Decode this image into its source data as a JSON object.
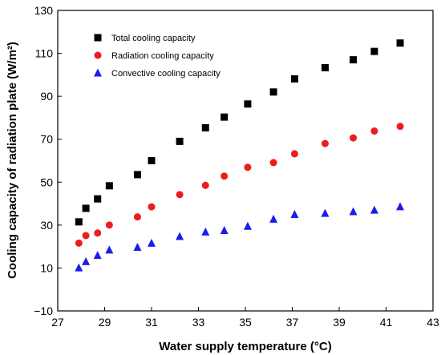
{
  "chart_data": {
    "type": "scatter",
    "title": "",
    "xlabel": "Water supply temperature (°C)",
    "ylabel": "Cooling capacity of radiation plate (W/m²)",
    "xlim": [
      27,
      43
    ],
    "ylim": [
      -10,
      130
    ],
    "xticks": [
      27,
      29,
      31,
      33,
      35,
      37,
      39,
      41,
      43
    ],
    "yticks": [
      -10,
      10,
      30,
      50,
      70,
      90,
      110,
      130
    ],
    "xtick_labels": [
      "27",
      "29",
      "31",
      "33",
      "35",
      "37",
      "39",
      "41",
      "43"
    ],
    "ytick_labels": [
      "−10",
      "10",
      "30",
      "50",
      "70",
      "90",
      "110",
      "130"
    ],
    "grid": false,
    "legend_position": "top-left",
    "series": [
      {
        "name": "Total cooling capacity",
        "marker": "square",
        "color": "#000000",
        "points": [
          [
            27.9,
            31.5
          ],
          [
            28.2,
            37.8
          ],
          [
            28.7,
            42.2
          ],
          [
            29.2,
            48.3
          ],
          [
            30.4,
            53.5
          ],
          [
            31.0,
            60.0
          ],
          [
            32.2,
            69.0
          ],
          [
            33.3,
            75.3
          ],
          [
            34.1,
            80.3
          ],
          [
            35.1,
            86.4
          ],
          [
            36.2,
            92.0
          ],
          [
            37.1,
            98.1
          ],
          [
            38.4,
            103.3
          ],
          [
            39.6,
            107.0
          ],
          [
            40.5,
            110.9
          ],
          [
            41.6,
            114.8
          ]
        ]
      },
      {
        "name": "Radiation cooling capacity",
        "marker": "circle",
        "color": "#ee1c1c",
        "points": [
          [
            27.9,
            21.6
          ],
          [
            28.2,
            25.1
          ],
          [
            28.7,
            26.3
          ],
          [
            29.2,
            30.0
          ],
          [
            30.4,
            33.8
          ],
          [
            31.0,
            38.5
          ],
          [
            32.2,
            44.2
          ],
          [
            33.3,
            48.5
          ],
          [
            34.1,
            52.8
          ],
          [
            35.1,
            56.9
          ],
          [
            36.2,
            59.1
          ],
          [
            37.1,
            63.2
          ],
          [
            38.4,
            68.0
          ],
          [
            39.6,
            70.6
          ],
          [
            40.5,
            73.8
          ],
          [
            41.6,
            76.0
          ]
        ]
      },
      {
        "name": "Convective cooling capacity",
        "marker": "triangle",
        "color": "#1c1cee",
        "points": [
          [
            27.9,
            10.1
          ],
          [
            28.2,
            13.0
          ],
          [
            28.7,
            15.9
          ],
          [
            29.2,
            18.4
          ],
          [
            30.4,
            19.7
          ],
          [
            31.0,
            21.6
          ],
          [
            32.2,
            24.7
          ],
          [
            33.3,
            26.8
          ],
          [
            34.1,
            27.5
          ],
          [
            35.1,
            29.5
          ],
          [
            36.2,
            32.8
          ],
          [
            37.1,
            35.0
          ],
          [
            38.4,
            35.5
          ],
          [
            39.6,
            36.3
          ],
          [
            40.5,
            37.0
          ],
          [
            41.6,
            38.6
          ]
        ]
      }
    ]
  }
}
